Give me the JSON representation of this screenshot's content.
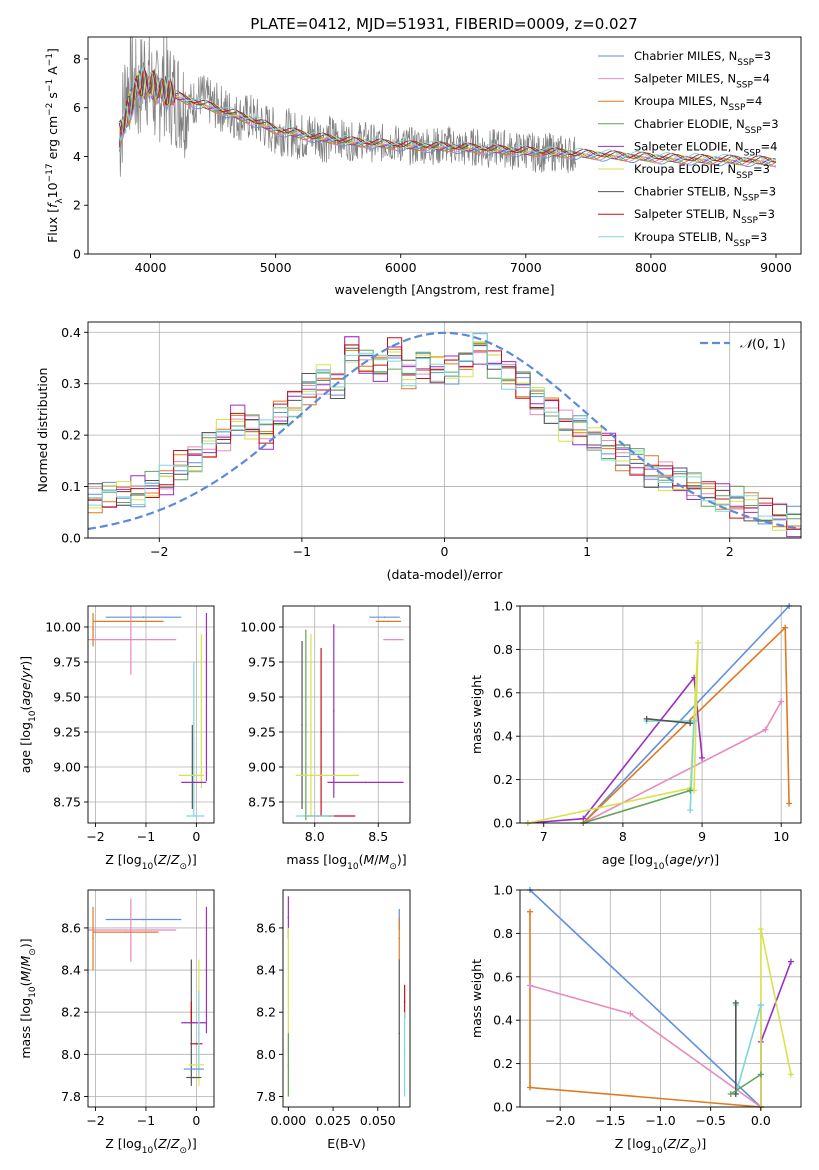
{
  "figure": {
    "title": "PLATE=0412, MJD=51931, FIBERID=0009, z=0.027"
  },
  "chart_data": [
    {
      "id": "spectrum",
      "type": "line",
      "title": "PLATE=0412, MJD=51931, FIBERID=0009, z=0.027",
      "xlabel": "wavelength [Angstrom, rest frame]",
      "ylabel": "Flux [f_λ 10^-17 erg cm^-2 s^-1 A^-1]",
      "xlim": [
        3500,
        9200
      ],
      "ylim": [
        0,
        8.9
      ],
      "xticks": [
        4000,
        5000,
        6000,
        7000,
        8000,
        9000
      ],
      "yticks": [
        0,
        2,
        4,
        6,
        8
      ],
      "grid": false,
      "legend_position": "top-right",
      "data_color": "#808080",
      "data": {
        "x": [
          3750,
          3800,
          3850,
          3900,
          3950,
          4000,
          4050,
          4100,
          4150,
          4200,
          4300,
          4400,
          4500,
          4600,
          4700,
          4800,
          4900,
          5000,
          5100,
          5200,
          5300,
          5400,
          5500,
          5600,
          5700,
          5800,
          5900,
          6000,
          6100,
          6200,
          6300,
          6400,
          6500,
          6600,
          6700,
          6800,
          6900,
          7000,
          7100,
          7200,
          7300,
          7400
        ],
        "y": [
          4.5,
          6.8,
          7.2,
          6.4,
          7.6,
          6.9,
          6.3,
          7.1,
          6.6,
          6.5,
          6.0,
          6.5,
          6.1,
          5.9,
          5.6,
          5.6,
          5.3,
          5.0,
          5.0,
          4.8,
          4.9,
          4.7,
          4.8,
          4.6,
          4.7,
          4.5,
          4.6,
          4.5,
          4.4,
          4.5,
          4.4,
          4.5,
          4.3,
          4.4,
          4.3,
          4.4,
          4.2,
          4.3,
          4.1,
          4.2,
          4.1,
          4.1
        ]
      },
      "model": {
        "x": [
          3750,
          3900,
          4000,
          4100,
          4300,
          4500,
          4800,
          5000,
          5300,
          5600,
          6000,
          6500,
          7000,
          7400,
          7800,
          8200,
          8600,
          9000
        ],
        "y": [
          4.8,
          7.0,
          6.9,
          6.7,
          6.3,
          6.0,
          5.5,
          5.1,
          4.8,
          4.6,
          4.45,
          4.35,
          4.2,
          4.1,
          4.0,
          3.9,
          3.85,
          3.8
        ]
      },
      "series": [
        {
          "name": "Chabrier MILES, N_SSP=3",
          "label_main": "Chabrier MILES, N",
          "label_sub": "SSP",
          "label_tail": "=3",
          "color": "#6190e0"
        },
        {
          "name": "Salpeter MILES, N_SSP=4",
          "label_main": "Salpeter MILES, N",
          "label_sub": "SSP",
          "label_tail": "=4",
          "color": "#e68bbd"
        },
        {
          "name": "Kroupa MILES, N_SSP=4",
          "label_main": "Kroupa MILES, N",
          "label_sub": "SSP",
          "label_tail": "=4",
          "color": "#e07a1f"
        },
        {
          "name": "Chabrier ELODIE, N_SSP=3",
          "label_main": "Chabrier ELODIE, N",
          "label_sub": "SSP",
          "label_tail": "=3",
          "color": "#63a35a"
        },
        {
          "name": "Salpeter ELODIE, N_SSP=4",
          "label_main": "Salpeter ELODIE, N",
          "label_sub": "SSP",
          "label_tail": "=4",
          "color": "#9a2fc0"
        },
        {
          "name": "Kroupa ELODIE, N_SSP=3",
          "label_main": "Kroupa ELODIE, N",
          "label_sub": "SSP",
          "label_tail": "=3",
          "color": "#d7e34a"
        },
        {
          "name": "Chabrier STELIB, N_SSP=3",
          "label_main": "Chabrier STELIB, N",
          "label_sub": "SSP",
          "label_tail": "=3",
          "color": "#555555"
        },
        {
          "name": "Salpeter STELIB, N_SSP=3",
          "label_main": "Salpeter STELIB, N",
          "label_sub": "SSP",
          "label_tail": "=3",
          "color": "#c0141c"
        },
        {
          "name": "Kroupa STELIB, N_SSP=3",
          "label_main": "Kroupa STELIB, N",
          "label_sub": "SSP",
          "label_tail": "=3",
          "color": "#7fd6dc"
        }
      ]
    },
    {
      "id": "residuals",
      "type": "line",
      "xlabel": "(data-model)/error",
      "ylabel": "Normed distribution",
      "xlim": [
        -2.5,
        2.5
      ],
      "ylim": [
        0,
        0.42
      ],
      "xticks": [
        -2,
        -1,
        0,
        1,
        2
      ],
      "yticks": [
        0.0,
        0.1,
        0.2,
        0.3,
        0.4
      ],
      "grid": true,
      "legend_position": "top-right",
      "reference": {
        "name": "N(0,1)",
        "color": "#5b8bd9"
      },
      "hist_centers": [
        -2.45,
        -2.35,
        -2.25,
        -2.15,
        -2.05,
        -1.95,
        -1.85,
        -1.75,
        -1.65,
        -1.55,
        -1.45,
        -1.35,
        -1.25,
        -1.15,
        -1.05,
        -0.95,
        -0.85,
        -0.75,
        -0.65,
        -0.55,
        -0.45,
        -0.35,
        -0.25,
        -0.15,
        -0.05,
        0.05,
        0.15,
        0.25,
        0.35,
        0.45,
        0.55,
        0.65,
        0.75,
        0.85,
        0.95,
        1.05,
        1.15,
        1.25,
        1.35,
        1.45,
        1.55,
        1.65,
        1.75,
        1.85,
        1.95,
        2.05,
        2.15,
        2.25,
        2.35,
        2.45
      ],
      "hist_base": [
        0.075,
        0.08,
        0.085,
        0.09,
        0.1,
        0.11,
        0.14,
        0.15,
        0.18,
        0.2,
        0.23,
        0.22,
        0.2,
        0.24,
        0.26,
        0.29,
        0.31,
        0.3,
        0.37,
        0.34,
        0.33,
        0.36,
        0.32,
        0.34,
        0.33,
        0.33,
        0.34,
        0.37,
        0.34,
        0.32,
        0.3,
        0.27,
        0.25,
        0.22,
        0.21,
        0.19,
        0.18,
        0.16,
        0.15,
        0.13,
        0.12,
        0.11,
        0.1,
        0.09,
        0.08,
        0.07,
        0.06,
        0.05,
        0.04,
        0.03
      ]
    },
    {
      "id": "age_vs_Z",
      "type": "scatter",
      "xlabel": "Z [log10(Z/Zsun)]",
      "ylabel": "age [log10(age/yr)]",
      "xlim": [
        -2.15,
        0.35
      ],
      "ylim": [
        8.6,
        10.15
      ],
      "xticks": [
        -2,
        -1,
        0
      ],
      "yticks": [
        8.75,
        9.0,
        9.25,
        9.5,
        9.75,
        10.0
      ],
      "grid": true,
      "points": [
        {
          "series": 0,
          "x": -1.05,
          "y": 10.07,
          "xerr": 0.75,
          "yerr": 0.0
        },
        {
          "series": 2,
          "x": -1.35,
          "y": 10.04,
          "xerr": 0.7,
          "yerr": 0.0
        },
        {
          "series": 1,
          "x": -1.3,
          "y": 9.91,
          "xerr": 0.9,
          "yerr": 0.25
        },
        {
          "series": 2,
          "x": -2.05,
          "y": 9.98,
          "xerr": 0.0,
          "yerr": 0.12
        },
        {
          "series": 4,
          "x": 0.2,
          "y": 9.5,
          "xerr": 0.0,
          "yerr": 0.6
        },
        {
          "series": 5,
          "x": 0.1,
          "y": 9.4,
          "xerr": 0.0,
          "yerr": 0.55
        },
        {
          "series": 8,
          "x": -0.05,
          "y": 9.2,
          "xerr": 0.0,
          "yerr": 0.55
        },
        {
          "series": 6,
          "x": -0.08,
          "y": 9.0,
          "xerr": 0.0,
          "yerr": 0.3
        },
        {
          "series": 4,
          "x": -0.05,
          "y": 8.89,
          "xerr": 0.25,
          "yerr": 0.0
        },
        {
          "series": 5,
          "x": -0.1,
          "y": 8.94,
          "xerr": 0.25,
          "yerr": 0.0
        },
        {
          "series": 8,
          "x": -0.02,
          "y": 8.65,
          "xerr": 0.18,
          "yerr": 0.0
        }
      ]
    },
    {
      "id": "age_vs_mass",
      "type": "scatter",
      "xlabel": "mass [log10(M/Msun)]",
      "ylabel": "",
      "xlim": [
        7.75,
        8.75
      ],
      "ylim": [
        8.6,
        10.15
      ],
      "xticks": [
        8.0,
        8.5
      ],
      "yticks": [
        8.75,
        9.0,
        9.25,
        9.5,
        9.75,
        10.0
      ],
      "grid": true,
      "points": [
        {
          "series": 0,
          "x": 8.55,
          "y": 10.07,
          "xerr": 0.12,
          "yerr": 0.0
        },
        {
          "series": 2,
          "x": 8.58,
          "y": 10.04,
          "xerr": 0.1,
          "yerr": 0.0
        },
        {
          "series": 1,
          "x": 8.62,
          "y": 9.91,
          "xerr": 0.08,
          "yerr": 0.0
        },
        {
          "series": 6,
          "x": 7.9,
          "y": 9.3,
          "xerr": 0.0,
          "yerr": 0.6
        },
        {
          "series": 3,
          "x": 7.93,
          "y": 9.3,
          "xerr": 0.0,
          "yerr": 0.68
        },
        {
          "series": 5,
          "x": 7.97,
          "y": 9.3,
          "xerr": 0.0,
          "yerr": 0.65
        },
        {
          "series": 7,
          "x": 8.05,
          "y": 9.25,
          "xerr": 0.0,
          "yerr": 0.6
        },
        {
          "series": 4,
          "x": 8.15,
          "y": 9.4,
          "xerr": 0.0,
          "yerr": 0.62
        },
        {
          "series": 5,
          "x": 8.1,
          "y": 8.94,
          "xerr": 0.25,
          "yerr": 0.0
        },
        {
          "series": 4,
          "x": 8.4,
          "y": 8.89,
          "xerr": 0.3,
          "yerr": 0.0
        },
        {
          "series": 7,
          "x": 8.12,
          "y": 8.65,
          "xerr": 0.2,
          "yerr": 0.0
        },
        {
          "series": 8,
          "x": 8.0,
          "y": 8.65,
          "xerr": 0.15,
          "yerr": 0.0
        }
      ]
    },
    {
      "id": "weight_vs_age",
      "type": "line",
      "xlabel": "age [log10(age/yr)]",
      "ylabel": "mass weight",
      "xlim": [
        6.7,
        10.25
      ],
      "ylim": [
        0,
        1.0
      ],
      "xticks": [
        7,
        8,
        9,
        10
      ],
      "yticks": [
        0.0,
        0.2,
        0.4,
        0.6,
        0.8,
        1.0
      ],
      "grid": true,
      "lines": [
        {
          "series": 0,
          "x": [
            7.5,
            10.1
          ],
          "y": [
            0.0,
            1.0
          ]
        },
        {
          "series": 2,
          "x": [
            7.5,
            10.05,
            10.1
          ],
          "y": [
            0.0,
            0.9,
            0.09
          ]
        },
        {
          "series": 1,
          "x": [
            7.5,
            9.8,
            10.0
          ],
          "y": [
            0.0,
            0.43,
            0.56
          ]
        },
        {
          "series": 4,
          "x": [
            6.8,
            7.5,
            8.9,
            9.0
          ],
          "y": [
            0.0,
            0.02,
            0.67,
            0.3
          ]
        },
        {
          "series": 5,
          "x": [
            6.8,
            8.85,
            8.95,
            8.9
          ],
          "y": [
            0.0,
            0.16,
            0.83,
            0.15
          ]
        },
        {
          "series": 8,
          "x": [
            8.3,
            8.9,
            8.85,
            8.9
          ],
          "y": [
            0.47,
            0.47,
            0.06,
            0.47
          ]
        },
        {
          "series": 3,
          "x": [
            7.5,
            8.85
          ],
          "y": [
            0.0,
            0.15
          ]
        },
        {
          "series": 6,
          "x": [
            8.3,
            8.85
          ],
          "y": [
            0.48,
            0.46
          ]
        }
      ]
    },
    {
      "id": "mass_vs_Z",
      "type": "scatter",
      "xlabel": "Z [log10(Z/Zsun)]",
      "ylabel": "mass [log10(M/Msun)]",
      "xlim": [
        -2.15,
        0.35
      ],
      "ylim": [
        7.75,
        8.78
      ],
      "xticks": [
        -2,
        -1,
        0
      ],
      "yticks": [
        7.8,
        8.0,
        8.2,
        8.4,
        8.6
      ],
      "grid": true,
      "points": [
        {
          "series": 0,
          "x": -1.05,
          "y": 8.64,
          "xerr": 0.75,
          "yerr": 0.0
        },
        {
          "series": 1,
          "x": -1.3,
          "y": 8.59,
          "xerr": 0.9,
          "yerr": 0.15
        },
        {
          "series": 2,
          "x": -1.4,
          "y": 8.58,
          "xerr": 0.65,
          "yerr": 0.0
        },
        {
          "series": 2,
          "x": -2.05,
          "y": 8.55,
          "xerr": 0.0,
          "yerr": 0.15
        },
        {
          "series": 4,
          "x": 0.2,
          "y": 8.4,
          "xerr": 0.0,
          "yerr": 0.3
        },
        {
          "series": 4,
          "x": -0.05,
          "y": 8.15,
          "xerr": 0.25,
          "yerr": 0.0
        },
        {
          "series": 6,
          "x": -0.1,
          "y": 8.15,
          "xerr": 0.0,
          "yerr": 0.3
        },
        {
          "series": 7,
          "x": -0.1,
          "y": 8.2,
          "xerr": 0.0,
          "yerr": 0.05
        },
        {
          "series": 7,
          "x": 0.0,
          "y": 8.05,
          "xerr": 0.12,
          "yerr": 0.0
        },
        {
          "series": 5,
          "x": 0.05,
          "y": 8.15,
          "xerr": 0.0,
          "yerr": 0.3
        },
        {
          "series": 8,
          "x": 0.05,
          "y": 8.1,
          "xerr": 0.0,
          "yerr": 0.2
        },
        {
          "series": 5,
          "x": 0.0,
          "y": 7.95,
          "xerr": 0.15,
          "yerr": 0.0
        },
        {
          "series": 0,
          "x": -0.05,
          "y": 7.93,
          "xerr": 0.2,
          "yerr": 0.0
        },
        {
          "series": 6,
          "x": -0.05,
          "y": 7.89,
          "xerr": 0.15,
          "yerr": 0.0
        }
      ]
    },
    {
      "id": "mass_vs_EBV",
      "type": "scatter",
      "xlabel": "E(B-V)",
      "ylabel": "",
      "xlim": [
        -0.003,
        0.068
      ],
      "ylim": [
        7.75,
        8.78
      ],
      "xticks": [
        0.0,
        0.025,
        0.05
      ],
      "yticks": [
        7.8,
        8.0,
        8.2,
        8.4,
        8.6
      ],
      "grid": false,
      "points": [
        {
          "series": 4,
          "x": 0.0,
          "y": 8.65,
          "xerr": 0.0,
          "yerr": 0.1
        },
        {
          "series": 5,
          "x": 0.0,
          "y": 8.2,
          "xerr": 0.0,
          "yerr": 0.4
        },
        {
          "series": 3,
          "x": 0.0,
          "y": 7.95,
          "xerr": 0.0,
          "yerr": 0.15
        },
        {
          "series": 0,
          "x": 0.062,
          "y": 8.64,
          "xerr": 0.0,
          "yerr": 0.05
        },
        {
          "series": 2,
          "x": 0.062,
          "y": 8.55,
          "xerr": 0.0,
          "yerr": 0.1
        },
        {
          "series": 6,
          "x": 0.062,
          "y": 8.1,
          "xerr": 0.0,
          "yerr": 0.35
        },
        {
          "series": 7,
          "x": 0.065,
          "y": 8.25,
          "xerr": 0.0,
          "yerr": 0.08
        },
        {
          "series": 8,
          "x": 0.065,
          "y": 8.0,
          "xerr": 0.0,
          "yerr": 0.2
        }
      ]
    },
    {
      "id": "weight_vs_Z",
      "type": "line",
      "xlabel": "Z [log10(Z/Zsun)]",
      "ylabel": "mass weight",
      "xlim": [
        -2.4,
        0.4
      ],
      "ylim": [
        0,
        1.0
      ],
      "xticks": [
        -2.0,
        -1.5,
        -1.0,
        -0.5,
        0.0
      ],
      "yticks": [
        0.0,
        0.2,
        0.4,
        0.6,
        0.8,
        1.0
      ],
      "grid": true,
      "lines": [
        {
          "series": 0,
          "x": [
            -2.3,
            0.0,
            0.0
          ],
          "y": [
            1.0,
            0.0,
            0.47
          ]
        },
        {
          "series": 2,
          "x": [
            -2.3,
            -2.3,
            0.0
          ],
          "y": [
            0.9,
            0.09,
            0.0
          ]
        },
        {
          "series": 1,
          "x": [
            -2.3,
            -1.3,
            0.0
          ],
          "y": [
            0.56,
            0.43,
            0.0
          ]
        },
        {
          "series": 4,
          "x": [
            0.0,
            0.0,
            0.3
          ],
          "y": [
            0.0,
            0.3,
            0.67
          ]
        },
        {
          "series": 5,
          "x": [
            0.0,
            0.0,
            0.3
          ],
          "y": [
            0.0,
            0.82,
            0.15
          ]
        },
        {
          "series": 8,
          "x": [
            -0.25,
            -0.25,
            0.0
          ],
          "y": [
            0.47,
            0.06,
            0.47
          ]
        },
        {
          "series": 6,
          "x": [
            -0.25,
            -0.25
          ],
          "y": [
            0.48,
            0.06
          ]
        },
        {
          "series": 3,
          "x": [
            -0.3,
            0.0
          ],
          "y": [
            0.06,
            0.15
          ]
        }
      ]
    }
  ]
}
